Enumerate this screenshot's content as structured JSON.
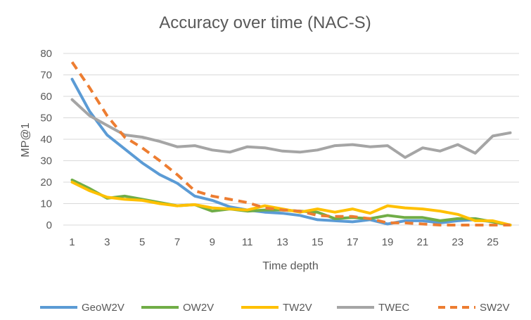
{
  "chart_data": {
    "type": "line",
    "title": "Accuracy over time (NAC-S)",
    "xlabel": "Time depth",
    "ylabel": "MP@1",
    "ylim": [
      0,
      80
    ],
    "y_ticks": [
      "0",
      "10",
      "20",
      "30",
      "40",
      "50",
      "60",
      "70",
      "80"
    ],
    "x": [
      1,
      2,
      3,
      4,
      5,
      6,
      7,
      8,
      9,
      10,
      11,
      12,
      13,
      14,
      15,
      16,
      17,
      18,
      19,
      20,
      21,
      22,
      23,
      24,
      25,
      26
    ],
    "x_tick_labels": [
      "1",
      "3",
      "5",
      "7",
      "9",
      "11",
      "13",
      "15",
      "17",
      "19",
      "21",
      "23",
      "25"
    ],
    "grid": true,
    "legend_position": "bottom",
    "series": [
      {
        "name": "GeoW2V",
        "color": "#5B9BD5",
        "dash": false,
        "values": [
          68,
          53,
          42,
          35.5,
          29,
          23.5,
          19.5,
          13.5,
          11.5,
          8.5,
          7,
          6,
          5.5,
          4.5,
          2.5,
          2,
          1.5,
          2.5,
          0.5,
          2,
          2,
          1,
          2,
          2.5,
          1.5,
          0
        ]
      },
      {
        "name": "OW2V",
        "color": "#70AD47",
        "dash": false,
        "values": [
          21,
          17,
          12.5,
          13.5,
          12,
          10.5,
          9,
          9.5,
          6.5,
          7.5,
          6.5,
          7,
          7,
          6.5,
          6,
          3,
          3.5,
          3,
          4.5,
          3.5,
          3.5,
          2,
          3,
          3,
          1.5,
          0
        ]
      },
      {
        "name": "TW2V",
        "color": "#FFC000",
        "dash": false,
        "values": [
          20,
          16,
          13,
          12,
          11.5,
          10,
          9,
          9.5,
          8,
          7.5,
          7,
          9,
          7.5,
          6,
          7.5,
          6,
          7.5,
          5.5,
          9,
          8,
          7.5,
          6.5,
          5,
          2,
          2,
          0
        ]
      },
      {
        "name": "TWEC",
        "color": "#A5A5A5",
        "dash": false,
        "values": [
          58.5,
          51,
          46.5,
          42,
          41,
          39,
          36.5,
          37,
          35,
          34,
          36.5,
          36,
          34.5,
          34,
          35,
          37,
          37.5,
          36.5,
          37,
          31.5,
          36,
          34.5,
          37.5,
          33.5,
          41.5,
          43
        ]
      },
      {
        "name": "SW2V",
        "color": "#ED7D31",
        "dash": true,
        "values": [
          76,
          64,
          51,
          41,
          36,
          30,
          23.5,
          16,
          13.5,
          12,
          10.5,
          8,
          7,
          6.5,
          4.5,
          4,
          4,
          3,
          1,
          1,
          0.5,
          0,
          0,
          0,
          0,
          0
        ]
      }
    ]
  }
}
